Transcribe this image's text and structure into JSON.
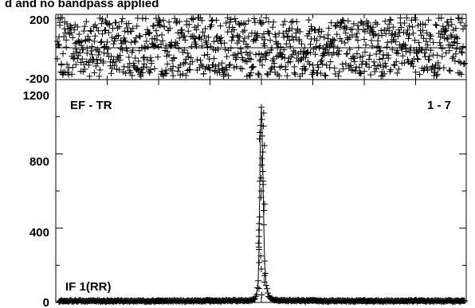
{
  "chart_data": [
    {
      "type": "scatter",
      "panel": "phase",
      "title": "d and no bandpass applied",
      "yticks": [
        200,
        -200
      ],
      "ytick_labels": [
        "200",
        "-200"
      ],
      "ylim": [
        -200,
        200
      ],
      "xlim": [
        0,
        511
      ],
      "zero_line": true,
      "marker": "plus",
      "phase_range": [
        -180,
        180
      ]
    },
    {
      "type": "line",
      "panel": "amplitude",
      "baseline": "EF - TR",
      "channels": "1 - 7",
      "stokes": "IF 1(RR)",
      "yticks": [
        0,
        400,
        800,
        1200
      ],
      "ytick_labels": [
        "0",
        "400",
        "800",
        "1200"
      ],
      "ylim": [
        0,
        1200
      ],
      "xlim": [
        0,
        511
      ],
      "marker": "plus",
      "peak_channel": 256,
      "peak_value": 1050,
      "noise_level": 8,
      "x": [
        0,
        64,
        128,
        192,
        240,
        248,
        250,
        252,
        253,
        254,
        255,
        256,
        257,
        258,
        259,
        260,
        262,
        265,
        272,
        320,
        384,
        448,
        511
      ],
      "values": [
        8,
        8,
        8,
        8,
        10,
        18,
        40,
        120,
        300,
        650,
        950,
        1050,
        900,
        650,
        420,
        220,
        90,
        30,
        12,
        8,
        8,
        8,
        8
      ]
    }
  ]
}
